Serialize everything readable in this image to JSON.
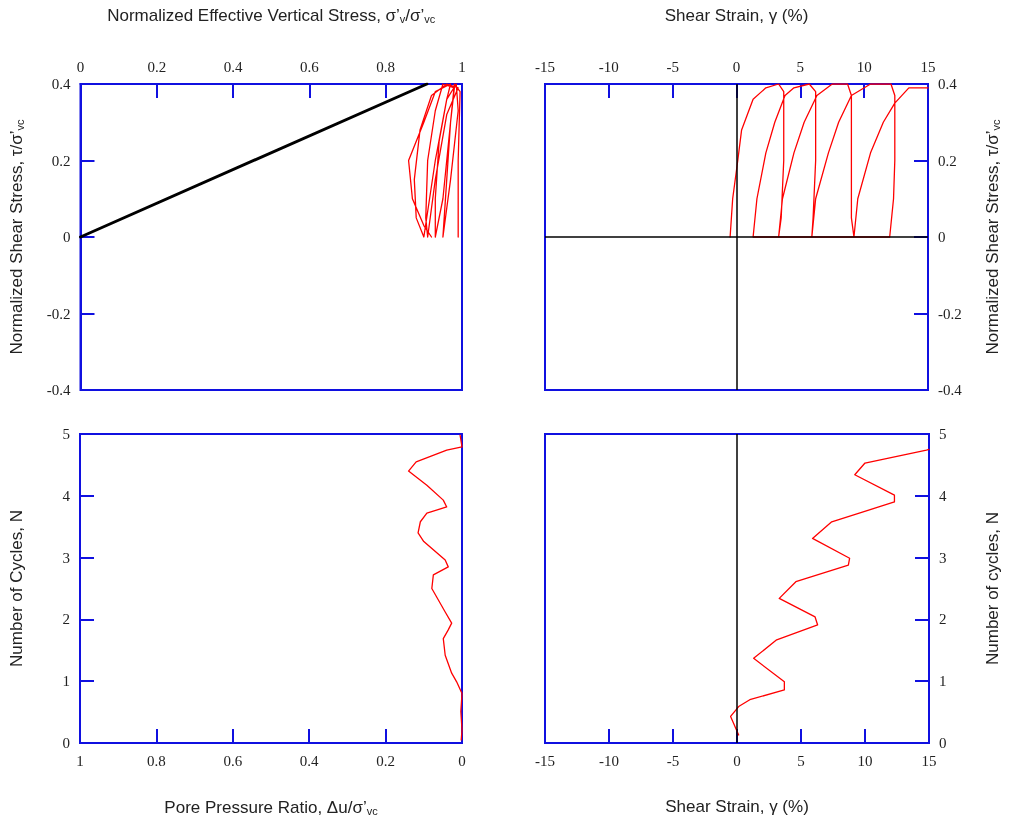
{
  "chart_data": [
    {
      "type": "line",
      "xlabel": "Normalized Effective Vertical Stress, σ’$_{v}$/σ’$_{vc}$",
      "ylabel": "Normalized Shear Stress, τ/σ’$_{vc}$",
      "xlim": [
        0,
        1
      ],
      "xticks": [
        0,
        0.2,
        0.4,
        0.6,
        0.8,
        1
      ],
      "ylim": [
        -0.4,
        0.4
      ],
      "yticks": [
        -0.4,
        -0.2,
        0,
        0.2,
        0.4
      ],
      "grid": false,
      "marker": "none",
      "line_style": "solid",
      "series": [
        {
          "color": "#000000",
          "x": [
            0,
            0.908
          ],
          "values": [
            0,
            0.4
          ]
        },
        {
          "color": "#ff0000",
          "x": [
            0.99,
            0.99,
            0.995,
            0.98,
            0.97,
            0.96,
            0.95,
            0.97,
            0.99,
            0.985,
            0.96,
            0.94,
            0.93,
            0.93,
            0.95,
            0.97,
            0.98,
            0.95,
            0.93,
            0.91,
            0.905,
            0.91,
            0.93,
            0.96,
            0.99,
            0.96,
            0.92,
            0.89,
            0.875,
            0.88,
            0.9,
            0.93,
            0.96,
            0.97,
            0.93,
            0.9,
            0.86,
            0.87,
            0.9,
            0.92
          ],
          "values": [
            0,
            0.2,
            0.38,
            0.4,
            0.3,
            0.15,
            0,
            0.15,
            0.33,
            0.4,
            0.36,
            0.25,
            0.1,
            0,
            0.1,
            0.3,
            0.39,
            0.4,
            0.33,
            0.2,
            0.05,
            0,
            0.15,
            0.32,
            0.39,
            0.4,
            0.37,
            0.28,
            0.15,
            0.05,
            0,
            0.2,
            0.36,
            0.4,
            0.38,
            0.3,
            0.2,
            0.1,
            0.03,
            0
          ]
        }
      ]
    },
    {
      "type": "line",
      "xlabel": "Shear Strain, γ (%)",
      "ylabel": "Normalized Shear Stress, τ/σ’$_{vc}$",
      "xlim": [
        -15,
        15
      ],
      "xticks": [
        -15,
        -10,
        -5,
        0,
        5,
        10,
        15
      ],
      "ylim": [
        -0.4,
        0.4
      ],
      "yticks": [
        -0.4,
        -0.2,
        0,
        0.2,
        0.4
      ],
      "grid": false,
      "marker": "none",
      "line_style": "solid",
      "ref_lines": [
        {
          "axis": "x",
          "value": 0,
          "color": "#000000"
        },
        {
          "axis": "y",
          "value": 0,
          "color": "#000000"
        }
      ],
      "series": [
        {
          "color": "#ff0000",
          "x": [
            -0.5,
            -0.3,
            0.1,
            0.4,
            1.3,
            2.3,
            3.3,
            3.7,
            3.7,
            3.5,
            3.3,
            1.3,
            1.6,
            2.3,
            3.0,
            3.8,
            4.5,
            5.7,
            6.2,
            6.2,
            6.0,
            5.9,
            3.3,
            3.6,
            4.5,
            5.3,
            6.3,
            7.5,
            8.7,
            9.0,
            9.0,
            9.0,
            9.2,
            5.9,
            6.2,
            7.2,
            8.0,
            9.0,
            10.5,
            12.1,
            12.4,
            12.4,
            12.3,
            12.0,
            9.2,
            9.5,
            10.5,
            11.5,
            12.4,
            13.5,
            15
          ],
          "values": [
            0,
            0.1,
            0.2,
            0.28,
            0.36,
            0.39,
            0.4,
            0.38,
            0.2,
            0.05,
            0,
            0,
            0.1,
            0.22,
            0.3,
            0.37,
            0.39,
            0.4,
            0.38,
            0.2,
            0.05,
            0,
            0,
            0.1,
            0.22,
            0.3,
            0.37,
            0.4,
            0.4,
            0.37,
            0.2,
            0.05,
            0,
            0,
            0.1,
            0.22,
            0.3,
            0.37,
            0.4,
            0.4,
            0.37,
            0.2,
            0.1,
            0,
            0,
            0.1,
            0.22,
            0.3,
            0.35,
            0.39,
            0.39
          ]
        }
      ]
    },
    {
      "type": "line",
      "xlabel": "Pore Pressure Ratio, Δu/σ’$_{vc}$",
      "ylabel": "Number of Cycles, N",
      "xlim": [
        1,
        0
      ],
      "xticks": [
        1,
        0.8,
        0.6,
        0.4,
        0.2,
        0
      ],
      "ylim": [
        0,
        5
      ],
      "yticks": [
        0,
        1,
        2,
        3,
        4,
        5
      ],
      "grid": false,
      "marker": "none",
      "line_style": "solid",
      "series": [
        {
          "color": "#ff0000",
          "x": [
            0.002,
            0,
            0.003,
            0,
            0.014,
            0.027,
            0.044,
            0.049,
            0.036,
            0.027,
            0.044,
            0.079,
            0.075,
            0.036,
            0.044,
            0.1,
            0.115,
            0.109,
            0.092,
            0.04,
            0.049,
            0.092,
            0.14,
            0.12,
            0.04,
            0,
            0.005
          ],
          "values": [
            0.05,
            0.21,
            0.51,
            0.8,
            0.99,
            1.13,
            1.42,
            1.69,
            1.83,
            1.94,
            2.12,
            2.5,
            2.72,
            2.85,
            2.96,
            3.26,
            3.4,
            3.58,
            3.72,
            3.82,
            3.93,
            4.17,
            4.4,
            4.55,
            4.74,
            4.79,
            4.98
          ]
        }
      ]
    },
    {
      "type": "line",
      "xlabel": "Shear Strain, γ (%)",
      "ylabel": "Number of cycles, N",
      "xlim": [
        -15,
        15
      ],
      "xticks": [
        -15,
        -10,
        -5,
        0,
        5,
        10,
        15
      ],
      "ylim": [
        0,
        5
      ],
      "yticks": [
        0,
        1,
        2,
        3,
        4,
        5
      ],
      "grid": false,
      "marker": "none",
      "line_style": "solid",
      "ref_lines": [
        {
          "axis": "x",
          "value": 0,
          "color": "#000000"
        }
      ],
      "series": [
        {
          "color": "#ff0000",
          "x": [
            0.13,
            -0.5,
            0.13,
            1.0,
            3.7,
            3.7,
            1.3,
            3.1,
            6.3,
            6.1,
            3.3,
            4.6,
            8.7,
            8.8,
            5.9,
            7.4,
            12.3,
            12.3,
            9.2,
            10.0,
            14.8,
            15
          ],
          "values": [
            0.13,
            0.43,
            0.59,
            0.7,
            0.86,
            0.99,
            1.37,
            1.67,
            1.91,
            2.04,
            2.34,
            2.61,
            2.88,
            2.99,
            3.31,
            3.58,
            3.9,
            4.01,
            4.34,
            4.53,
            4.74,
            4.75
          ]
        }
      ]
    }
  ]
}
